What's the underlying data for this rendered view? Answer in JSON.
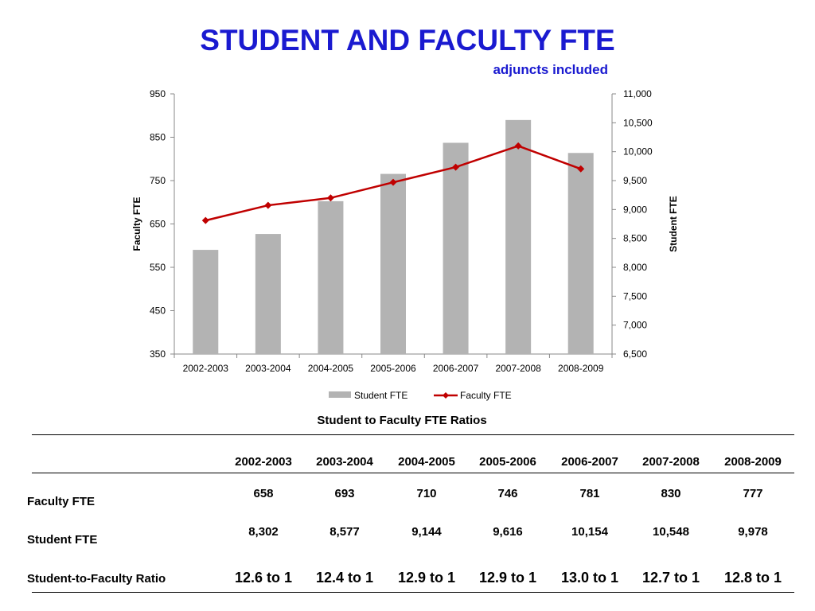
{
  "title": "STUDENT AND FACULTY FTE",
  "subtitle": "adjuncts included",
  "chart_data": {
    "type": "bar",
    "categories": [
      "2002-2003",
      "2003-2004",
      "2004-2005",
      "2005-2006",
      "2006-2007",
      "2007-2008",
      "2008-2009"
    ],
    "series": [
      {
        "name": "Student FTE",
        "kind": "bar",
        "axis": "right",
        "color": "#b3b3b3",
        "values": [
          8302,
          8577,
          9144,
          9616,
          10154,
          10548,
          9978
        ]
      },
      {
        "name": "Faculty FTE",
        "kind": "line",
        "axis": "left",
        "color": "#c00000",
        "values": [
          658,
          693,
          710,
          746,
          781,
          830,
          777
        ]
      }
    ],
    "y_left": {
      "label": "Faculty FTE",
      "lim": [
        350,
        950
      ],
      "ticks": [
        "350",
        "450",
        "550",
        "650",
        "750",
        "850",
        "950"
      ]
    },
    "y_right": {
      "label": "Student FTE",
      "lim": [
        6500,
        11000
      ],
      "ticks": [
        "6,500",
        "7,000",
        "7,500",
        "8,000",
        "8,500",
        "9,000",
        "9,500",
        "10,000",
        "10,500",
        "11,000"
      ]
    },
    "grid": false,
    "legend": "bottom"
  },
  "table": {
    "caption": "Student to Faculty FTE Ratios",
    "years": [
      "2002-2003",
      "2003-2004",
      "2004-2005",
      "2005-2006",
      "2006-2007",
      "2007-2008",
      "2008-2009"
    ],
    "rows": [
      {
        "label": "Faculty FTE",
        "values": [
          "658",
          "693",
          "710",
          "746",
          "781",
          "830",
          "777"
        ]
      },
      {
        "label": "Student FTE",
        "values": [
          "8,302",
          "8,577",
          "9,144",
          "9,616",
          "10,154",
          "10,548",
          "9,978"
        ]
      },
      {
        "label": "Student-to-Faculty Ratio",
        "values": [
          "12.6 to 1",
          "12.4 to 1",
          "12.9 to 1",
          "12.9 to 1",
          "13.0 to 1",
          "12.7 to 1",
          "12.8 to 1"
        ]
      }
    ]
  }
}
